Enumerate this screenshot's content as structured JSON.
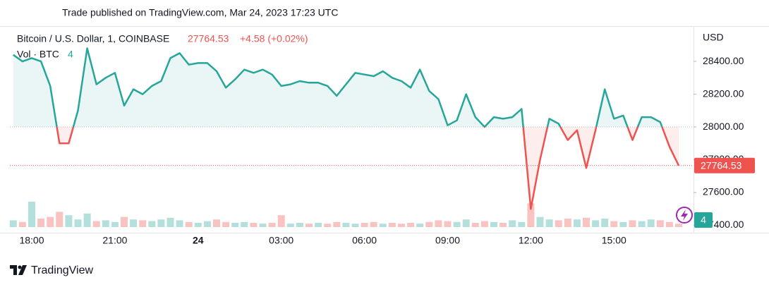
{
  "publish_note": "Trade published on TradingView.com, Mar 24, 2023 17:23 UTC",
  "brand": "TradingView",
  "chart_data": {
    "type": "line",
    "symbol": "Bitcoin / U.S. Dollar, 1, COINBASE",
    "change": "+4.58 (+0.02%)",
    "currency": "USD",
    "baseline": 28000,
    "categories": [
      null,
      null,
      "18:00",
      null,
      null,
      null,
      null,
      null,
      null,
      null,
      null,
      "21:00",
      null,
      null,
      null,
      null,
      null,
      null,
      null,
      null,
      "24",
      null,
      null,
      null,
      null,
      null,
      null,
      null,
      null,
      "03:00",
      null,
      null,
      null,
      null,
      null,
      null,
      null,
      null,
      "06:00",
      null,
      null,
      null,
      null,
      null,
      null,
      null,
      null,
      "09:00",
      null,
      null,
      null,
      null,
      null,
      null,
      null,
      null,
      "12:00",
      null,
      null,
      null,
      null,
      null,
      null,
      null,
      null,
      "15:00",
      null,
      null,
      null,
      null,
      null,
      null,
      null
    ],
    "series": [
      {
        "name": "BTCUSD",
        "color": "#26a69a",
        "color_below": "#ef5350",
        "values": [
          28440,
          28400,
          28420,
          28400,
          28250,
          27900,
          27900,
          28100,
          28480,
          28260,
          28300,
          28330,
          28130,
          28230,
          28200,
          28250,
          28280,
          28420,
          28450,
          28380,
          28390,
          28390,
          28340,
          28240,
          28290,
          28350,
          28330,
          28350,
          28320,
          28250,
          28260,
          28280,
          28270,
          28270,
          28250,
          28190,
          28260,
          28330,
          28320,
          28310,
          28340,
          28300,
          28280,
          28240,
          28350,
          28220,
          28170,
          28010,
          28040,
          28200,
          28060,
          28000,
          28060,
          28050,
          28060,
          28110,
          27500,
          27800,
          28050,
          28020,
          27920,
          27980,
          27750,
          27980,
          28230,
          28050,
          28070,
          27920,
          28060,
          28060,
          28030,
          27880,
          27764.53
        ]
      }
    ],
    "volume": {
      "name": "Vol · BTC",
      "values": [
        8,
        6,
        30,
        10,
        12,
        18,
        14,
        9,
        16,
        7,
        8,
        6,
        12,
        9,
        8,
        7,
        9,
        11,
        8,
        6,
        5,
        7,
        9,
        6,
        5,
        6,
        5,
        4,
        5,
        14,
        4,
        5,
        4,
        5,
        4,
        6,
        5,
        4,
        5,
        6,
        4,
        5,
        4,
        5,
        4,
        6,
        8,
        7,
        6,
        9,
        5,
        7,
        6,
        5,
        8,
        6,
        28,
        12,
        9,
        8,
        10,
        9,
        11,
        8,
        10,
        7,
        6,
        8,
        7,
        9,
        8,
        6,
        4
      ]
    },
    "ylim": [
      27355,
      28611
    ],
    "yticks": [
      {
        "value": 27400,
        "label": "27400.00"
      },
      {
        "value": 27600,
        "label": "27600.00"
      },
      {
        "value": 27800,
        "label": "27800.00"
      },
      {
        "value": 28000,
        "label": "28000.00"
      },
      {
        "value": 28200,
        "label": "28200.00"
      },
      {
        "value": 28400,
        "label": "28400.00"
      }
    ]
  }
}
